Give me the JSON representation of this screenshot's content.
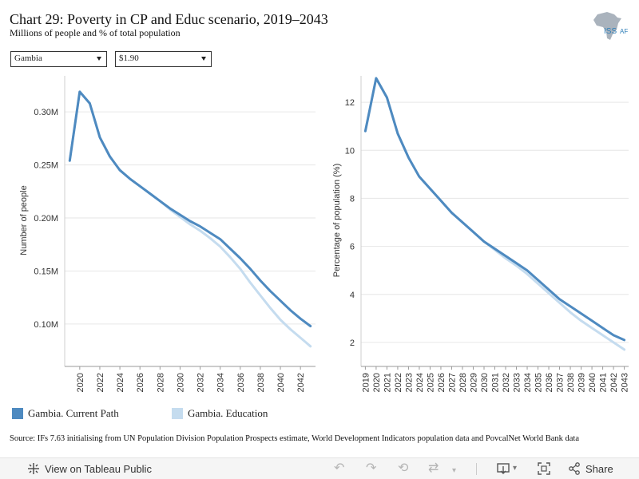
{
  "header": {
    "title": "Chart 29: Poverty in CP and Educ scenario, 2019–2043",
    "subtitle": "Millions of people and % of total population",
    "logo_text_iss": "ISS",
    "logo_text_af": "AF"
  },
  "filters": {
    "country": "Gambia",
    "poverty_line": "$1.90"
  },
  "colors": {
    "current_path": "#4e8ac0",
    "education": "#c5dcef",
    "grid": "#e6e6e6",
    "axis": "#9a9a9a"
  },
  "chart_data": [
    {
      "type": "line",
      "ylabel": "Number of people",
      "xlabel": "",
      "x_ticks": [
        "2020",
        "2022",
        "2024",
        "2026",
        "2028",
        "2030",
        "2032",
        "2034",
        "2036",
        "2038",
        "2040",
        "2042"
      ],
      "y_ticks": [
        "0.10M",
        "0.15M",
        "0.20M",
        "0.25M",
        "0.30M"
      ],
      "y_tick_values": [
        0.1,
        0.15,
        0.2,
        0.25,
        0.3
      ],
      "xlim": [
        2018.5,
        2043.5
      ],
      "ylim": [
        0.06,
        0.334
      ],
      "grid": "horizontal",
      "x": [
        2019,
        2020,
        2021,
        2022,
        2023,
        2024,
        2025,
        2026,
        2027,
        2028,
        2029,
        2030,
        2031,
        2032,
        2033,
        2034,
        2035,
        2036,
        2037,
        2038,
        2039,
        2040,
        2041,
        2042,
        2043
      ],
      "series": [
        {
          "name": "Gambia. Current Path",
          "values": [
            0.254,
            0.319,
            0.308,
            0.276,
            0.258,
            0.245,
            0.237,
            0.23,
            0.223,
            0.216,
            0.209,
            0.203,
            0.197,
            0.192,
            0.186,
            0.18,
            0.171,
            0.162,
            0.152,
            0.141,
            0.131,
            0.122,
            0.113,
            0.105,
            0.098
          ]
        },
        {
          "name": "Gambia. Education",
          "values": [
            0.254,
            0.319,
            0.308,
            0.276,
            0.258,
            0.245,
            0.237,
            0.23,
            0.223,
            0.216,
            0.208,
            0.201,
            0.194,
            0.188,
            0.181,
            0.173,
            0.163,
            0.152,
            0.139,
            0.127,
            0.115,
            0.104,
            0.095,
            0.087,
            0.079
          ]
        }
      ]
    },
    {
      "type": "line",
      "ylabel": "Percentage of population (%)",
      "xlabel": "",
      "x_ticks": [
        "2019",
        "2020",
        "2021",
        "2022",
        "2023",
        "2024",
        "2025",
        "2026",
        "2027",
        "2028",
        "2029",
        "2030",
        "2031",
        "2032",
        "2033",
        "2034",
        "2035",
        "2036",
        "2037",
        "2038",
        "2039",
        "2040",
        "2041",
        "2042",
        "2043"
      ],
      "y_ticks": [
        "2",
        "4",
        "6",
        "8",
        "10",
        "12"
      ],
      "y_tick_values": [
        2,
        4,
        6,
        8,
        10,
        12
      ],
      "xlim": [
        2018.6,
        2043.4
      ],
      "ylim": [
        1.0,
        13.1
      ],
      "grid": "horizontal",
      "x": [
        2019,
        2020,
        2021,
        2022,
        2023,
        2024,
        2025,
        2026,
        2027,
        2028,
        2029,
        2030,
        2031,
        2032,
        2033,
        2034,
        2035,
        2036,
        2037,
        2038,
        2039,
        2040,
        2041,
        2042,
        2043
      ],
      "series": [
        {
          "name": "Gambia. Current Path",
          "values": [
            10.8,
            13.0,
            12.2,
            10.7,
            9.7,
            8.9,
            8.4,
            7.9,
            7.4,
            7.0,
            6.6,
            6.2,
            5.9,
            5.6,
            5.3,
            5.0,
            4.6,
            4.2,
            3.8,
            3.5,
            3.2,
            2.9,
            2.6,
            2.3,
            2.1
          ]
        },
        {
          "name": "Gambia. Education",
          "values": [
            10.8,
            13.0,
            12.2,
            10.7,
            9.7,
            8.9,
            8.4,
            7.9,
            7.4,
            7.0,
            6.6,
            6.2,
            5.85,
            5.5,
            5.2,
            4.85,
            4.45,
            4.05,
            3.65,
            3.25,
            2.9,
            2.6,
            2.3,
            2.0,
            1.7
          ]
        }
      ]
    }
  ],
  "legend": [
    {
      "label": "Gambia. Current Path"
    },
    {
      "label": "Gambia. Education"
    }
  ],
  "source": "Source: IFs 7.63 initialising from UN Population Division Population Prospects estimate, World Development Indicators population data and PovcalNet World Bank data",
  "toolbar": {
    "view_label": "View on Tableau Public",
    "share_label": "Share",
    "icons": [
      "tableau-icon",
      "undo-icon",
      "redo-icon",
      "revert-icon",
      "refresh-icon",
      "download-icon",
      "fullscreen-icon",
      "share-icon"
    ]
  }
}
